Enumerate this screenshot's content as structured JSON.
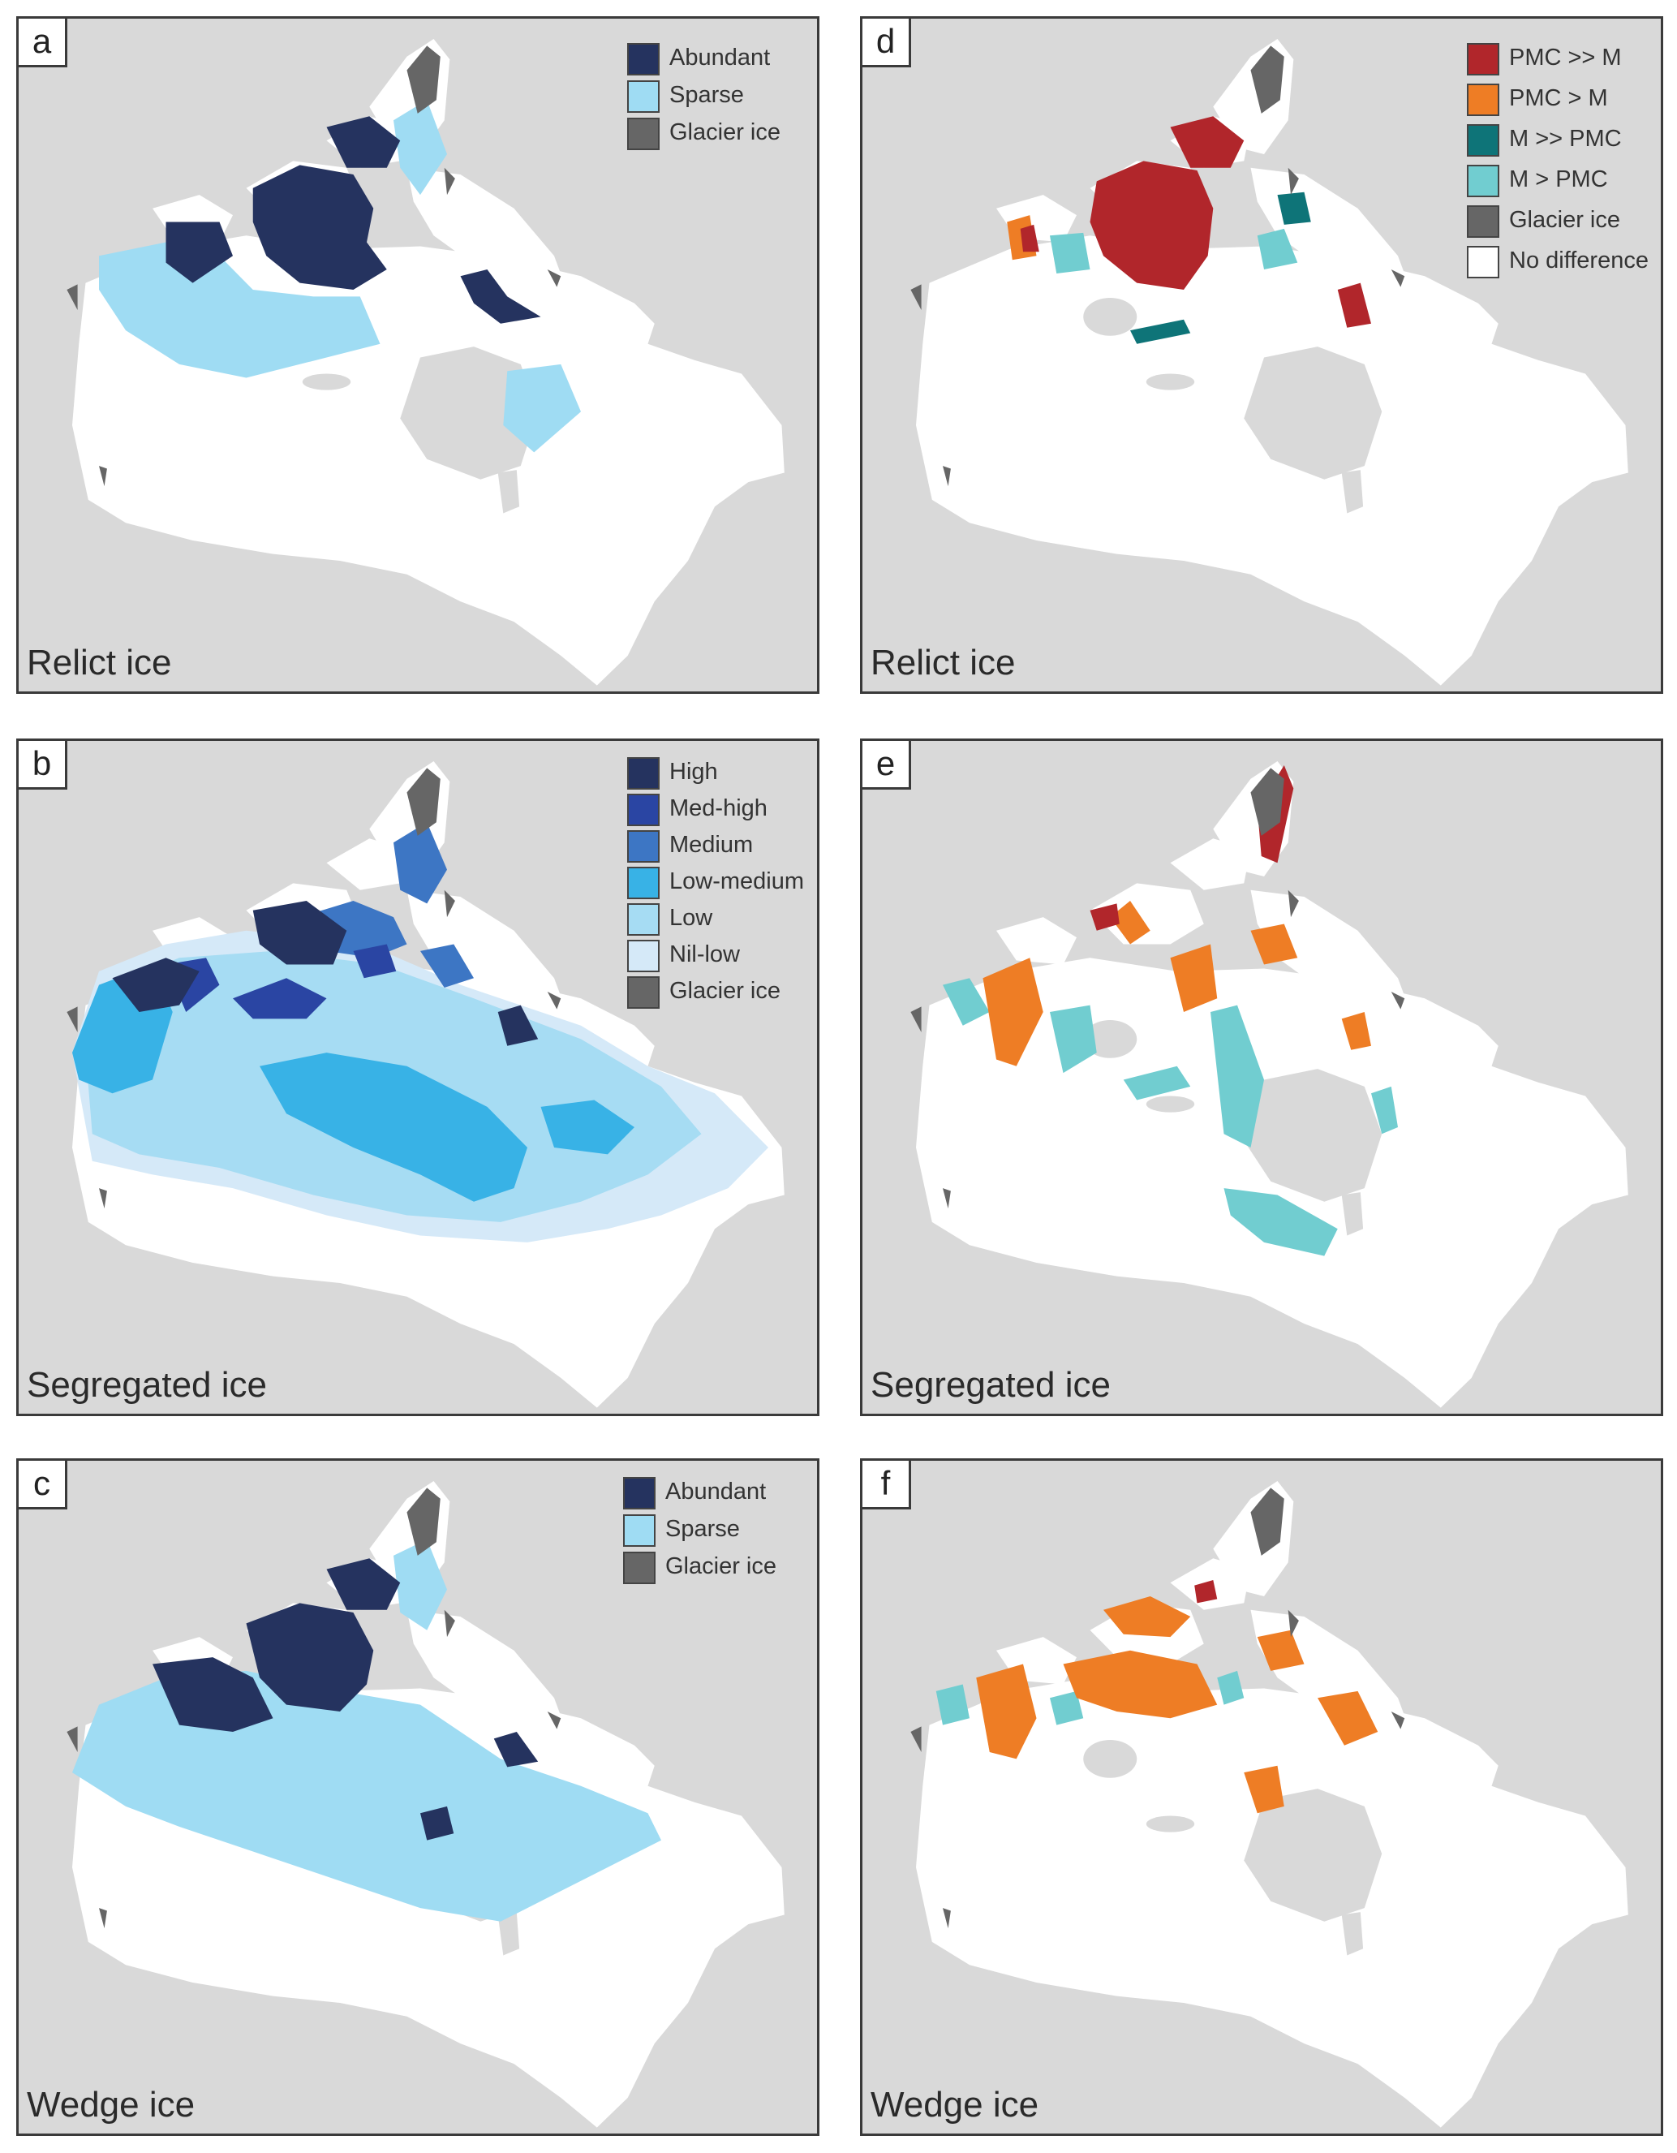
{
  "colors": {
    "background": "#d9d9d9",
    "land": "#ffffff",
    "glacier": "#666666",
    "abundant": "#25335f",
    "sparse": "#9fdcf3",
    "high": "#25335f",
    "med_high": "#2a45a3",
    "medium": "#3d76c4",
    "low_medium": "#38b2e6",
    "low": "#a6dcf3",
    "nil_low": "#d5e9f8",
    "pmc_much_greater": "#b1262b",
    "pmc_greater": "#ee7d25",
    "m_much_greater": "#0e7478",
    "m_greater": "#71cdd0",
    "no_difference": "#ffffff"
  },
  "panels": {
    "a": {
      "letter": "a",
      "caption": "Relict ice",
      "legend": [
        {
          "label": "Abundant",
          "color": "#25335f"
        },
        {
          "label": "Sparse",
          "color": "#9fdcf3"
        },
        {
          "label": "Glacier ice",
          "color": "#666666"
        }
      ]
    },
    "b": {
      "letter": "b",
      "caption": "Segregated ice",
      "legend": [
        {
          "label": "High",
          "color": "#25335f"
        },
        {
          "label": "Med-high",
          "color": "#2a45a3"
        },
        {
          "label": "Medium",
          "color": "#3d76c4"
        },
        {
          "label": "Low-medium",
          "color": "#38b2e6"
        },
        {
          "label": "Low",
          "color": "#a6dcf3"
        },
        {
          "label": "Nil-low",
          "color": "#d5e9f8"
        },
        {
          "label": "Glacier ice",
          "color": "#666666"
        }
      ]
    },
    "c": {
      "letter": "c",
      "caption": "Wedge ice",
      "legend": [
        {
          "label": "Abundant",
          "color": "#25335f"
        },
        {
          "label": "Sparse",
          "color": "#9fdcf3"
        },
        {
          "label": "Glacier ice",
          "color": "#666666"
        }
      ]
    },
    "d": {
      "letter": "d",
      "caption": "Relict ice",
      "legend": [
        {
          "label": "PMC >> M",
          "color": "#b1262b"
        },
        {
          "label": "PMC > M",
          "color": "#ee7d25"
        },
        {
          "label": "M >> PMC",
          "color": "#0e7478"
        },
        {
          "label": "M > PMC",
          "color": "#71cdd0"
        },
        {
          "label": "Glacier ice",
          "color": "#666666"
        },
        {
          "label": "No difference",
          "color": "#ffffff"
        }
      ]
    },
    "e": {
      "letter": "e",
      "caption": "Segregated ice",
      "legend": []
    },
    "f": {
      "letter": "f",
      "caption": "Wedge ice",
      "legend": []
    }
  }
}
